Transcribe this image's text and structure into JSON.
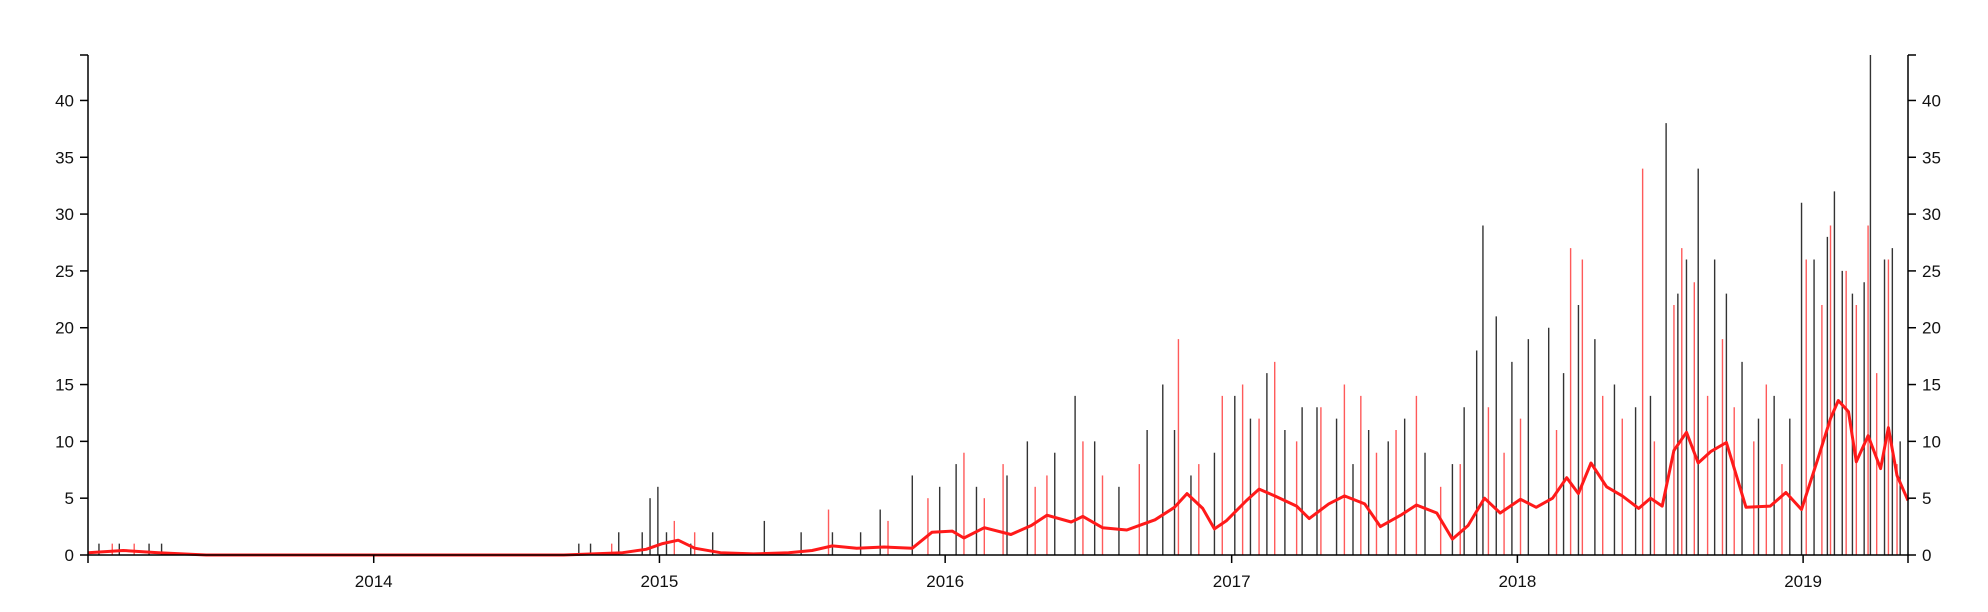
{
  "chart_data": {
    "type": "bar",
    "title": "",
    "xlabel": "",
    "ylabel": "",
    "x_range": [
      "2013-01-01",
      "2019-05-15"
    ],
    "ylim": [
      0,
      44
    ],
    "y_ticks": [
      0,
      5,
      10,
      15,
      20,
      25,
      30,
      35,
      40
    ],
    "y_tick_labels": [
      "0",
      "5",
      "10",
      "15",
      "20",
      "25",
      "30",
      "35",
      "40"
    ],
    "x_ticks": [
      "2014-01-01",
      "2015-01-01",
      "2016-01-01",
      "2017-01-01",
      "2018-01-01",
      "2019-01-01"
    ],
    "x_tick_labels": [
      "2014",
      "2015",
      "2016",
      "2017",
      "2018",
      "2019"
    ],
    "grid": false,
    "legend": "none",
    "y_axis_sides": [
      "left",
      "right"
    ],
    "colors": {
      "black_bars": "#333333",
      "red_bars": "#ff5a5a",
      "moving_average": "#ff1a1a",
      "axis": "#000000"
    },
    "series": [
      {
        "type": "bar",
        "color": "black",
        "points": [
          [
            "2013-01-15",
            1
          ],
          [
            "2013-02-10",
            1
          ],
          [
            "2013-03-20",
            1
          ],
          [
            "2013-04-05",
            1
          ],
          [
            "2014-09-20",
            1
          ],
          [
            "2014-10-05",
            1
          ],
          [
            "2014-11-10",
            2
          ],
          [
            "2014-12-10",
            2
          ],
          [
            "2014-12-20",
            5
          ],
          [
            "2014-12-30",
            6
          ],
          [
            "2015-01-10",
            2
          ],
          [
            "2015-02-10",
            1
          ],
          [
            "2015-03-10",
            2
          ],
          [
            "2015-05-15",
            3
          ],
          [
            "2015-07-01",
            2
          ],
          [
            "2015-08-10",
            2
          ],
          [
            "2015-09-15",
            2
          ],
          [
            "2015-10-10",
            4
          ],
          [
            "2015-11-20",
            7
          ],
          [
            "2015-12-25",
            6
          ],
          [
            "2016-01-15",
            8
          ],
          [
            "2016-02-10",
            6
          ],
          [
            "2016-03-20",
            7
          ],
          [
            "2016-04-15",
            10
          ],
          [
            "2016-05-20",
            9
          ],
          [
            "2016-06-15",
            14
          ],
          [
            "2016-07-10",
            10
          ],
          [
            "2016-08-10",
            6
          ],
          [
            "2016-09-15",
            11
          ],
          [
            "2016-10-05",
            15
          ],
          [
            "2016-10-20",
            11
          ],
          [
            "2016-11-10",
            7
          ],
          [
            "2016-12-10",
            9
          ],
          [
            "2017-01-05",
            14
          ],
          [
            "2017-01-25",
            12
          ],
          [
            "2017-02-15",
            16
          ],
          [
            "2017-03-10",
            11
          ],
          [
            "2017-04-01",
            13
          ],
          [
            "2017-04-20",
            13
          ],
          [
            "2017-05-15",
            12
          ],
          [
            "2017-06-05",
            8
          ],
          [
            "2017-06-25",
            11
          ],
          [
            "2017-07-20",
            10
          ],
          [
            "2017-08-10",
            12
          ],
          [
            "2017-09-05",
            9
          ],
          [
            "2017-10-10",
            8
          ],
          [
            "2017-10-25",
            13
          ],
          [
            "2017-11-10",
            18
          ],
          [
            "2017-11-18",
            29
          ],
          [
            "2017-12-05",
            21
          ],
          [
            "2017-12-25",
            17
          ],
          [
            "2018-01-15",
            19
          ],
          [
            "2018-02-10",
            20
          ],
          [
            "2018-03-01",
            16
          ],
          [
            "2018-03-20",
            22
          ],
          [
            "2018-04-10",
            19
          ],
          [
            "2018-05-05",
            15
          ],
          [
            "2018-06-01",
            13
          ],
          [
            "2018-06-20",
            14
          ],
          [
            "2018-07-10",
            38
          ],
          [
            "2018-07-25",
            23
          ],
          [
            "2018-08-05",
            26
          ],
          [
            "2018-08-20",
            34
          ],
          [
            "2018-09-10",
            26
          ],
          [
            "2018-09-25",
            23
          ],
          [
            "2018-10-15",
            17
          ],
          [
            "2018-11-05",
            12
          ],
          [
            "2018-11-25",
            14
          ],
          [
            "2018-12-15",
            12
          ],
          [
            "2018-12-30",
            31
          ],
          [
            "2019-01-15",
            26
          ],
          [
            "2019-02-01",
            28
          ],
          [
            "2019-02-10",
            32
          ],
          [
            "2019-02-20",
            25
          ],
          [
            "2019-03-05",
            23
          ],
          [
            "2019-03-20",
            24
          ],
          [
            "2019-03-28",
            44
          ],
          [
            "2019-04-15",
            26
          ],
          [
            "2019-04-25",
            27
          ],
          [
            "2019-05-05",
            10
          ]
        ]
      },
      {
        "type": "bar",
        "color": "red",
        "points": [
          [
            "2013-02-01",
            1
          ],
          [
            "2013-03-01",
            1
          ],
          [
            "2014-11-01",
            1
          ],
          [
            "2015-01-20",
            3
          ],
          [
            "2015-02-15",
            2
          ],
          [
            "2015-08-05",
            4
          ],
          [
            "2015-10-20",
            3
          ],
          [
            "2015-12-10",
            5
          ],
          [
            "2016-01-25",
            9
          ],
          [
            "2016-02-20",
            5
          ],
          [
            "2016-03-15",
            8
          ],
          [
            "2016-04-25",
            6
          ],
          [
            "2016-05-10",
            7
          ],
          [
            "2016-06-25",
            10
          ],
          [
            "2016-07-20",
            7
          ],
          [
            "2016-09-05",
            8
          ],
          [
            "2016-10-25",
            19
          ],
          [
            "2016-11-20",
            8
          ],
          [
            "2016-12-20",
            14
          ],
          [
            "2017-01-15",
            15
          ],
          [
            "2017-02-05",
            12
          ],
          [
            "2017-02-25",
            17
          ],
          [
            "2017-03-25",
            10
          ],
          [
            "2017-04-25",
            13
          ],
          [
            "2017-05-25",
            15
          ],
          [
            "2017-06-15",
            14
          ],
          [
            "2017-07-05",
            9
          ],
          [
            "2017-07-30",
            11
          ],
          [
            "2017-08-25",
            14
          ],
          [
            "2017-09-25",
            6
          ],
          [
            "2017-10-20",
            8
          ],
          [
            "2017-11-25",
            13
          ],
          [
            "2017-12-15",
            9
          ],
          [
            "2018-01-05",
            12
          ],
          [
            "2018-02-20",
            11
          ],
          [
            "2018-03-10",
            27
          ],
          [
            "2018-03-25",
            26
          ],
          [
            "2018-04-20",
            14
          ],
          [
            "2018-05-15",
            12
          ],
          [
            "2018-06-10",
            34
          ],
          [
            "2018-06-25",
            10
          ],
          [
            "2018-07-20",
            22
          ],
          [
            "2018-07-30",
            27
          ],
          [
            "2018-08-15",
            24
          ],
          [
            "2018-09-01",
            14
          ],
          [
            "2018-09-20",
            19
          ],
          [
            "2018-10-05",
            13
          ],
          [
            "2018-10-30",
            10
          ],
          [
            "2018-11-15",
            15
          ],
          [
            "2018-12-05",
            8
          ],
          [
            "2019-01-05",
            26
          ],
          [
            "2019-01-25",
            22
          ],
          [
            "2019-02-05",
            29
          ],
          [
            "2019-02-25",
            25
          ],
          [
            "2019-03-10",
            22
          ],
          [
            "2019-03-25",
            29
          ],
          [
            "2019-04-05",
            16
          ],
          [
            "2019-04-20",
            26
          ],
          [
            "2019-05-01",
            8
          ]
        ]
      },
      {
        "type": "line",
        "color": "red",
        "points": [
          [
            "2013-01-01",
            0.2
          ],
          [
            "2013-02-15",
            0.4
          ],
          [
            "2013-04-01",
            0.2
          ],
          [
            "2013-06-01",
            0
          ],
          [
            "2014-09-01",
            0
          ],
          [
            "2014-11-15",
            0.2
          ],
          [
            "2014-12-15",
            0.5
          ],
          [
            "2015-01-05",
            1.0
          ],
          [
            "2015-01-25",
            1.3
          ],
          [
            "2015-02-15",
            0.6
          ],
          [
            "2015-03-20",
            0.2
          ],
          [
            "2015-05-01",
            0.1
          ],
          [
            "2015-06-15",
            0.2
          ],
          [
            "2015-07-15",
            0.4
          ],
          [
            "2015-08-10",
            0.8
          ],
          [
            "2015-09-10",
            0.6
          ],
          [
            "2015-10-15",
            0.7
          ],
          [
            "2015-11-20",
            0.6
          ],
          [
            "2015-12-15",
            2.0
          ],
          [
            "2016-01-10",
            2.1
          ],
          [
            "2016-01-25",
            1.5
          ],
          [
            "2016-02-20",
            2.4
          ],
          [
            "2016-03-25",
            1.8
          ],
          [
            "2016-04-20",
            2.6
          ],
          [
            "2016-05-10",
            3.5
          ],
          [
            "2016-06-10",
            2.9
          ],
          [
            "2016-06-25",
            3.4
          ],
          [
            "2016-07-20",
            2.4
          ],
          [
            "2016-08-20",
            2.2
          ],
          [
            "2016-09-25",
            3.1
          ],
          [
            "2016-10-20",
            4.2
          ],
          [
            "2016-11-05",
            5.4
          ],
          [
            "2016-11-25",
            4.1
          ],
          [
            "2016-12-10",
            2.3
          ],
          [
            "2016-12-25",
            3.0
          ],
          [
            "2017-01-20",
            4.8
          ],
          [
            "2017-02-05",
            5.8
          ],
          [
            "2017-02-25",
            5.2
          ],
          [
            "2017-03-25",
            4.3
          ],
          [
            "2017-04-10",
            3.2
          ],
          [
            "2017-05-05",
            4.5
          ],
          [
            "2017-05-25",
            5.2
          ],
          [
            "2017-06-20",
            4.5
          ],
          [
            "2017-07-10",
            2.5
          ],
          [
            "2017-08-05",
            3.5
          ],
          [
            "2017-08-25",
            4.4
          ],
          [
            "2017-09-20",
            3.7
          ],
          [
            "2017-10-10",
            1.4
          ],
          [
            "2017-10-30",
            2.6
          ],
          [
            "2017-11-20",
            5.0
          ],
          [
            "2017-12-10",
            3.7
          ],
          [
            "2018-01-05",
            4.9
          ],
          [
            "2018-01-25",
            4.2
          ],
          [
            "2018-02-15",
            5.0
          ],
          [
            "2018-03-05",
            6.8
          ],
          [
            "2018-03-20",
            5.4
          ],
          [
            "2018-04-05",
            8.1
          ],
          [
            "2018-04-25",
            6.0
          ],
          [
            "2018-05-15",
            5.2
          ],
          [
            "2018-06-05",
            4.1
          ],
          [
            "2018-06-20",
            5.0
          ],
          [
            "2018-07-05",
            4.3
          ],
          [
            "2018-07-20",
            9.2
          ],
          [
            "2018-08-05",
            10.8
          ],
          [
            "2018-08-20",
            8.1
          ],
          [
            "2018-09-05",
            9.1
          ],
          [
            "2018-09-25",
            9.9
          ],
          [
            "2018-10-20",
            4.2
          ],
          [
            "2018-11-20",
            4.3
          ],
          [
            "2018-12-10",
            5.5
          ],
          [
            "2018-12-30",
            4.0
          ],
          [
            "2019-01-20",
            8.5
          ],
          [
            "2019-02-05",
            12.0
          ],
          [
            "2019-02-15",
            13.6
          ],
          [
            "2019-02-28",
            12.6
          ],
          [
            "2019-03-10",
            8.2
          ],
          [
            "2019-03-25",
            10.5
          ],
          [
            "2019-04-10",
            7.6
          ],
          [
            "2019-04-20",
            11.2
          ],
          [
            "2019-05-01",
            7.0
          ],
          [
            "2019-05-15",
            4.8
          ]
        ]
      }
    ]
  }
}
